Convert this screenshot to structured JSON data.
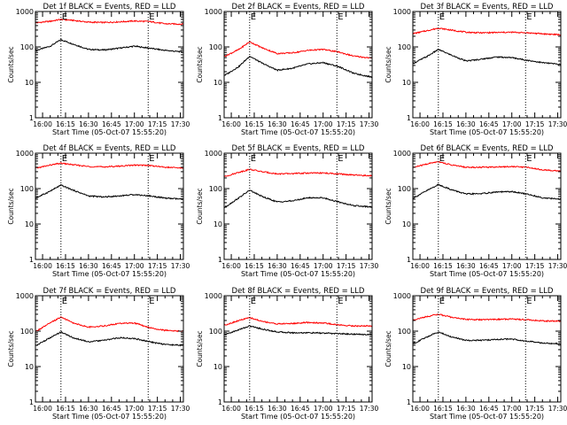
{
  "chart_data": [
    {
      "type": "line",
      "title": "Det 1f BLACK = Events, RED = LLD",
      "ylabel": "Counts/sec",
      "xlabel": "Start Time (05-Oct-07 15:55:20)",
      "x_ticks": [
        "16:00",
        "16:15",
        "16:30",
        "16:45",
        "17:00",
        "17:15",
        "17:30"
      ],
      "y_ticks": [
        "1",
        "10",
        "100",
        "1000"
      ],
      "ylim": [
        1,
        1000
      ],
      "y_scale": "log",
      "markers": [
        "E",
        "E"
      ],
      "marker_times": [
        "16:12",
        "17:09"
      ],
      "x": [
        "15:56",
        "16:05",
        "16:12",
        "16:20",
        "16:30",
        "16:40",
        "16:50",
        "17:00",
        "17:10",
        "17:20",
        "17:32"
      ],
      "series": [
        {
          "color": "#000000",
          "values": [
            80,
            105,
            160,
            120,
            85,
            82,
            92,
            105,
            92,
            80,
            72
          ]
        },
        {
          "color": "#ff0000",
          "values": [
            480,
            530,
            600,
            560,
            500,
            490,
            510,
            540,
            520,
            450,
            440
          ]
        }
      ]
    },
    {
      "type": "line",
      "title": "Det 2f BLACK = Events, RED = LLD",
      "ylabel": "Counts/sec",
      "xlabel": "Start Time (05-Oct-07 15:55:20)",
      "x_ticks": [
        "16:00",
        "16:15",
        "16:30",
        "16:45",
        "17:00",
        "17:15",
        "17:30"
      ],
      "y_ticks": [
        "1",
        "10",
        "100",
        "1000"
      ],
      "ylim": [
        1,
        1000
      ],
      "y_scale": "log",
      "markers": [
        "E",
        "E"
      ],
      "marker_times": [
        "16:12",
        "17:09"
      ],
      "x": [
        "15:56",
        "16:05",
        "16:12",
        "16:20",
        "16:30",
        "16:40",
        "16:50",
        "17:00",
        "17:10",
        "17:20",
        "17:32"
      ],
      "series": [
        {
          "color": "#000000",
          "values": [
            16,
            28,
            55,
            35,
            22,
            25,
            33,
            36,
            28,
            18,
            14
          ]
        },
        {
          "color": "#ff0000",
          "values": [
            55,
            85,
            140,
            95,
            65,
            68,
            80,
            85,
            72,
            55,
            48
          ]
        }
      ]
    },
    {
      "type": "line",
      "title": "Det 3f BLACK = Events, RED = LLD",
      "ylabel": "Counts/sec",
      "xlabel": "Start Time (05-Oct-07 15:55:20)",
      "x_ticks": [
        "16:00",
        "16:15",
        "16:30",
        "16:45",
        "17:00",
        "17:15",
        "17:30"
      ],
      "y_ticks": [
        "1",
        "10",
        "100",
        "1000"
      ],
      "ylim": [
        1,
        1000
      ],
      "y_scale": "log",
      "markers": [
        "E",
        "E"
      ],
      "marker_times": [
        "16:12",
        "17:09"
      ],
      "x": [
        "15:56",
        "16:05",
        "16:12",
        "16:20",
        "16:30",
        "16:40",
        "16:50",
        "17:00",
        "17:10",
        "17:20",
        "17:32"
      ],
      "series": [
        {
          "color": "#000000",
          "values": [
            35,
            55,
            85,
            60,
            40,
            45,
            52,
            50,
            42,
            36,
            32
          ]
        },
        {
          "color": "#ff0000",
          "values": [
            240,
            290,
            340,
            300,
            260,
            250,
            255,
            260,
            250,
            235,
            220
          ]
        }
      ]
    },
    {
      "type": "line",
      "title": "Det 4f BLACK = Events, RED = LLD",
      "ylabel": "Counts/sec",
      "xlabel": "Start Time (05-Oct-07 15:55:20)",
      "x_ticks": [
        "16:00",
        "16:15",
        "16:30",
        "16:45",
        "17:00",
        "17:15",
        "17:30"
      ],
      "y_ticks": [
        "1",
        "10",
        "100",
        "1000"
      ],
      "ylim": [
        1,
        1000
      ],
      "y_scale": "log",
      "markers": [
        "E",
        "E"
      ],
      "marker_times": [
        "16:12",
        "17:09"
      ],
      "x": [
        "15:56",
        "16:05",
        "16:12",
        "16:20",
        "16:30",
        "16:40",
        "16:50",
        "17:00",
        "17:10",
        "17:20",
        "17:32"
      ],
      "series": [
        {
          "color": "#000000",
          "values": [
            55,
            85,
            125,
            90,
            62,
            58,
            62,
            68,
            62,
            54,
            50
          ]
        },
        {
          "color": "#ff0000",
          "values": [
            380,
            460,
            520,
            470,
            420,
            410,
            430,
            460,
            450,
            400,
            380
          ]
        }
      ]
    },
    {
      "type": "line",
      "title": "Det 5f BLACK = Events, RED = LLD",
      "ylabel": "Counts/sec",
      "xlabel": "Start Time (05-Oct-07 15:55:20)",
      "x_ticks": [
        "16:00",
        "16:15",
        "16:30",
        "16:45",
        "17:00",
        "17:15",
        "17:30"
      ],
      "y_ticks": [
        "1",
        "10",
        "100",
        "1000"
      ],
      "ylim": [
        1,
        1000
      ],
      "y_scale": "log",
      "markers": [
        "E",
        "E"
      ],
      "marker_times": [
        "16:12",
        "17:09"
      ],
      "x": [
        "15:56",
        "16:05",
        "16:12",
        "16:20",
        "16:30",
        "16:40",
        "16:50",
        "17:00",
        "17:10",
        "17:20",
        "17:32"
      ],
      "series": [
        {
          "color": "#000000",
          "values": [
            30,
            55,
            90,
            60,
            42,
            45,
            55,
            55,
            42,
            33,
            30
          ]
        },
        {
          "color": "#ff0000",
          "values": [
            220,
            290,
            350,
            300,
            260,
            265,
            275,
            275,
            260,
            240,
            230
          ]
        }
      ]
    },
    {
      "type": "line",
      "title": "Det 6f BLACK = Events, RED = LLD",
      "ylabel": "Counts/sec",
      "xlabel": "Start Time (05-Oct-07 15:55:20)",
      "x_ticks": [
        "16:00",
        "16:15",
        "16:30",
        "16:45",
        "17:00",
        "17:15",
        "17:30"
      ],
      "y_ticks": [
        "1",
        "10",
        "100",
        "1000"
      ],
      "ylim": [
        1,
        1000
      ],
      "y_scale": "log",
      "markers": [
        "E",
        "E"
      ],
      "marker_times": [
        "16:12",
        "17:09"
      ],
      "x": [
        "15:56",
        "16:05",
        "16:12",
        "16:20",
        "16:30",
        "16:40",
        "16:50",
        "17:00",
        "17:10",
        "17:20",
        "17:32"
      ],
      "series": [
        {
          "color": "#000000",
          "values": [
            55,
            90,
            130,
            95,
            70,
            72,
            80,
            82,
            70,
            55,
            50
          ]
        },
        {
          "color": "#ff0000",
          "values": [
            400,
            500,
            580,
            470,
            400,
            400,
            410,
            420,
            400,
            340,
            310
          ]
        }
      ]
    },
    {
      "type": "line",
      "title": "Det 7f BLACK = Events, RED = LLD",
      "ylabel": "Counts/sec",
      "xlabel": "Start Time (05-Oct-07 15:55:20)",
      "x_ticks": [
        "16:00",
        "16:15",
        "16:30",
        "16:45",
        "17:00",
        "17:15",
        "17:30"
      ],
      "y_ticks": [
        "1",
        "10",
        "100",
        "1000"
      ],
      "ylim": [
        1,
        1000
      ],
      "y_scale": "log",
      "markers": [
        "E",
        "E"
      ],
      "marker_times": [
        "16:12",
        "17:09"
      ],
      "x": [
        "15:56",
        "16:05",
        "16:12",
        "16:20",
        "16:30",
        "16:40",
        "16:50",
        "17:00",
        "17:10",
        "17:20",
        "17:32"
      ],
      "series": [
        {
          "color": "#000000",
          "values": [
            40,
            65,
            95,
            65,
            50,
            55,
            65,
            62,
            50,
            42,
            40
          ]
        },
        {
          "color": "#ff0000",
          "values": [
            100,
            170,
            250,
            170,
            130,
            140,
            165,
            170,
            125,
            105,
            100
          ]
        }
      ]
    },
    {
      "type": "line",
      "title": "Det 8f BLACK = Events, RED = LLD",
      "ylabel": "Counts/sec",
      "xlabel": "Start Time (05-Oct-07 15:55:20)",
      "x_ticks": [
        "16:00",
        "16:15",
        "16:30",
        "16:45",
        "17:00",
        "17:15",
        "17:30"
      ],
      "y_ticks": [
        "1",
        "10",
        "100",
        "1000"
      ],
      "ylim": [
        1,
        1000
      ],
      "y_scale": "log",
      "markers": [
        "E",
        "E"
      ],
      "marker_times": [
        "16:12",
        "17:09"
      ],
      "x": [
        "15:56",
        "16:05",
        "16:12",
        "16:20",
        "16:30",
        "16:40",
        "16:50",
        "17:00",
        "17:10",
        "17:20",
        "17:32"
      ],
      "series": [
        {
          "color": "#000000",
          "values": [
            80,
            110,
            140,
            115,
            95,
            90,
            90,
            88,
            85,
            82,
            80
          ]
        },
        {
          "color": "#ff0000",
          "values": [
            150,
            200,
            240,
            190,
            160,
            165,
            175,
            170,
            150,
            140,
            140
          ]
        }
      ]
    },
    {
      "type": "line",
      "title": "Det 9f BLACK = Events, RED = LLD",
      "ylabel": "Counts/sec",
      "xlabel": "Start Time (05-Oct-07 15:55:20)",
      "x_ticks": [
        "16:00",
        "16:15",
        "16:30",
        "16:45",
        "17:00",
        "17:15",
        "17:30"
      ],
      "y_ticks": [
        "1",
        "10",
        "100",
        "1000"
      ],
      "ylim": [
        1,
        1000
      ],
      "y_scale": "log",
      "markers": [
        "E",
        "E"
      ],
      "marker_times": [
        "16:12",
        "17:09"
      ],
      "x": [
        "15:56",
        "16:05",
        "16:12",
        "16:20",
        "16:30",
        "16:40",
        "16:50",
        "17:00",
        "17:10",
        "17:20",
        "17:32"
      ],
      "series": [
        {
          "color": "#000000",
          "values": [
            45,
            70,
            95,
            70,
            55,
            55,
            58,
            60,
            52,
            46,
            44
          ]
        },
        {
          "color": "#ff0000",
          "values": [
            210,
            260,
            300,
            250,
            215,
            210,
            215,
            220,
            210,
            195,
            190
          ]
        }
      ]
    }
  ]
}
